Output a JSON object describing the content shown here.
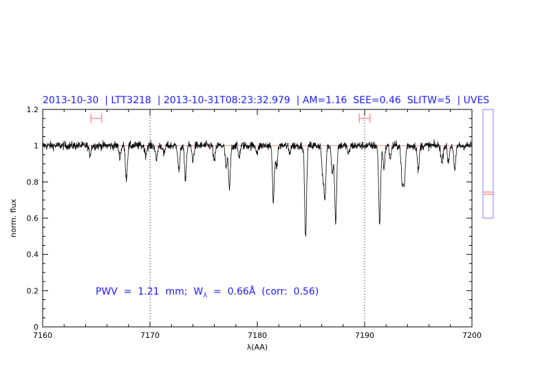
{
  "chart_data": {
    "type": "line",
    "title": "2013-10-30  | LTT3218  | 2013-10-31T08:23:32.979  | AM=1.16  SEE=0.46  SLITW=5  | UVES",
    "xlabel": "λ(AA)",
    "ylabel": "norm. flux",
    "xlim": [
      7160,
      7200
    ],
    "ylim": [
      0,
      1.2
    ],
    "xticks": [
      "7160",
      "7170",
      "7180",
      "7190",
      "7200"
    ],
    "yticks": [
      "0",
      "0.2",
      "0.4",
      "0.6",
      "0.8",
      "1",
      "1.2"
    ],
    "continuum": 1.0,
    "reference_lines_x": [
      7170,
      7190
    ],
    "fit_ranges": [
      [
        7164.5,
        7165.5
      ],
      [
        7189.5,
        7190.5
      ]
    ],
    "absorption_lines": [
      {
        "center": 7164.4,
        "min_flux": 0.95
      },
      {
        "center": 7167.2,
        "min_flux": 0.94
      },
      {
        "center": 7167.8,
        "min_flux": 0.82
      },
      {
        "center": 7169.6,
        "min_flux": 0.95
      },
      {
        "center": 7170.6,
        "min_flux": 0.92
      },
      {
        "center": 7171.3,
        "min_flux": 0.95
      },
      {
        "center": 7172.7,
        "min_flux": 0.86
      },
      {
        "center": 7173.3,
        "min_flux": 0.82
      },
      {
        "center": 7174.0,
        "min_flux": 0.92
      },
      {
        "center": 7176.0,
        "min_flux": 0.91
      },
      {
        "center": 7177.1,
        "min_flux": 0.88
      },
      {
        "center": 7177.4,
        "min_flux": 0.76
      },
      {
        "center": 7178.3,
        "min_flux": 0.94
      },
      {
        "center": 7180.0,
        "min_flux": 0.96
      },
      {
        "center": 7181.5,
        "min_flux": 0.7
      },
      {
        "center": 7181.8,
        "min_flux": 0.88
      },
      {
        "center": 7183.0,
        "min_flux": 0.96
      },
      {
        "center": 7184.5,
        "min_flux": 0.49
      },
      {
        "center": 7186.1,
        "min_flux": 0.83
      },
      {
        "center": 7186.3,
        "min_flux": 0.71
      },
      {
        "center": 7187.0,
        "min_flux": 0.85
      },
      {
        "center": 7187.3,
        "min_flux": 0.58
      },
      {
        "center": 7188.5,
        "min_flux": 0.95
      },
      {
        "center": 7191.4,
        "min_flux": 0.57
      },
      {
        "center": 7191.8,
        "min_flux": 0.88
      },
      {
        "center": 7192.4,
        "min_flux": 0.93
      },
      {
        "center": 7193.5,
        "min_flux": 0.79
      },
      {
        "center": 7193.7,
        "min_flux": 0.79
      },
      {
        "center": 7195.0,
        "min_flux": 0.86
      },
      {
        "center": 7197.2,
        "min_flux": 0.9
      },
      {
        "center": 7197.8,
        "min_flux": 0.91
      },
      {
        "center": 7198.4,
        "min_flux": 0.86
      }
    ],
    "noise_sigma": 0.012,
    "side_panel": {
      "range": [
        0,
        1
      ],
      "marker_values": [
        0.22,
        0.24
      ]
    },
    "annotation": {
      "prefix": "PWV  =  1.21  mm;  W",
      "subscript": "λ",
      "suffix": "  =  0.66Å  (corr:  0.56)"
    }
  },
  "colors": {
    "title": "#1a1aff",
    "spectrum": "#000000",
    "continuum": "#e08080",
    "fit_range": "#ff6060",
    "side_box": "#7f7fff"
  }
}
